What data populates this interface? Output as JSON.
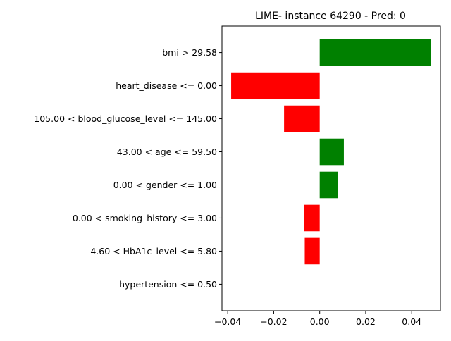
{
  "chart_data": {
    "type": "bar",
    "orientation": "horizontal",
    "title": "LIME- instance 64290 - Pred: 0",
    "xlabel": "",
    "ylabel": "",
    "categories": [
      "bmi > 29.58",
      "heart_disease <= 0.00",
      "105.00 < blood_glucose_level <= 145.00",
      "43.00 < age <= 59.50",
      "0.00 < gender <= 1.00",
      "0.00 < smoking_history <= 3.00",
      "4.60 < HbA1c_level <= 5.80",
      "hypertension <= 0.50"
    ],
    "values": [
      0.0485,
      -0.0385,
      -0.0155,
      0.0105,
      0.008,
      -0.0068,
      -0.0065,
      0.0
    ],
    "xlim": [
      -0.0425,
      0.0525
    ],
    "xticks": [
      -0.04,
      -0.02,
      0.0,
      0.02,
      0.04
    ],
    "xtick_labels": [
      "−0.04",
      "−0.02",
      "0.00",
      "0.02",
      "0.04"
    ],
    "grid": false,
    "colors": {
      "positive": "#008000",
      "negative": "#ff0000"
    }
  }
}
